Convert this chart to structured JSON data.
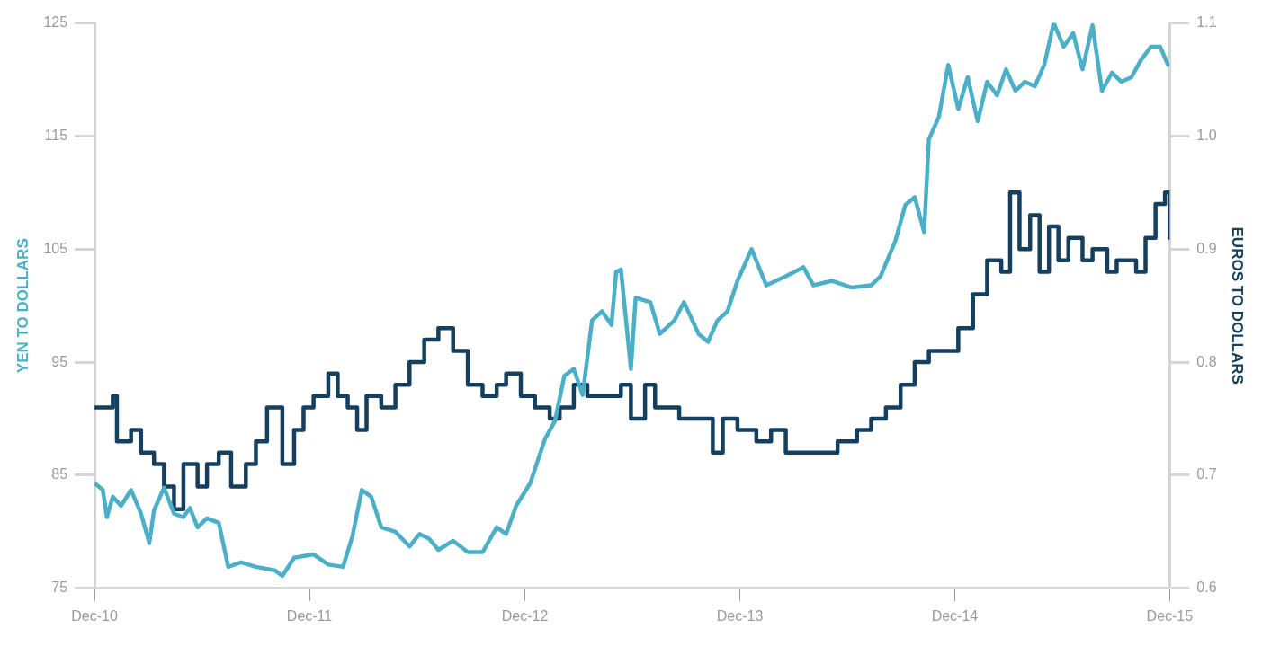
{
  "chart_data": {
    "type": "line",
    "ylabel": "YEN TO DOLLARS",
    "y2label": "EUROS TO DOLLARS",
    "xlim": [
      "2010-12",
      "2015-12"
    ],
    "xticks": [
      {
        "value": "2010-12",
        "label": "Dec-10"
      },
      {
        "value": "2011-12",
        "label": "Dec-11"
      },
      {
        "value": "2012-12",
        "label": "Dec-12"
      },
      {
        "value": "2013-12",
        "label": "Dec-13"
      },
      {
        "value": "2014-12",
        "label": "Dec-14"
      },
      {
        "value": "2015-12",
        "label": "Dec-15"
      }
    ],
    "ylim": [
      75,
      125
    ],
    "yticks": [
      75,
      85,
      95,
      105,
      115,
      125
    ],
    "y2lim": [
      0.6,
      1.1
    ],
    "y2ticks": [
      {
        "value": 0.6,
        "label": "0.6"
      },
      {
        "value": 0.7,
        "label": "0.7"
      },
      {
        "value": 0.8,
        "label": "0.8"
      },
      {
        "value": 0.9,
        "label": "0.9"
      },
      {
        "value": 1.0,
        "label": "1.0"
      },
      {
        "value": 1.1,
        "label": "1.1"
      }
    ],
    "grid": false,
    "legend": false,
    "marker": "none",
    "line_style": "solid",
    "series": [
      {
        "type": "line",
        "color": "#4bafc8",
        "x": [
          "2010-12-01",
          "2010-12-15",
          "2010-12-22",
          "2011-01-01",
          "2011-01-15",
          "2011-02-01",
          "2011-02-18",
          "2011-03-04",
          "2011-03-12",
          "2011-03-29",
          "2011-04-15",
          "2011-05-01",
          "2011-05-12",
          "2011-05-25",
          "2011-06-10",
          "2011-06-30",
          "2011-07-16",
          "2011-08-07",
          "2011-09-01",
          "2011-10-03",
          "2011-10-16",
          "2011-11-05",
          "2011-12-08",
          "2012-01-02",
          "2012-01-27",
          "2012-02-12",
          "2012-02-28",
          "2012-03-15",
          "2012-04-01",
          "2012-04-25",
          "2012-05-19",
          "2012-06-05",
          "2012-06-21",
          "2012-07-07",
          "2012-08-01",
          "2012-08-26",
          "2012-09-20",
          "2012-10-14",
          "2012-10-30",
          "2012-11-16",
          "2012-12-10",
          "2013-01-04",
          "2013-01-21",
          "2013-02-06",
          "2013-02-22",
          "2013-03-09",
          "2013-03-25",
          "2013-04-11",
          "2013-04-27",
          "2013-05-05",
          "2013-05-13",
          "2013-05-30",
          "2013-06-07",
          "2013-07-02",
          "2013-07-18",
          "2013-08-12",
          "2013-08-28",
          "2013-09-22",
          "2013-10-08",
          "2013-10-24",
          "2013-11-10",
          "2013-11-27",
          "2013-12-21",
          "2014-01-15",
          "2014-02-17",
          "2014-03-19",
          "2014-04-05",
          "2014-05-07",
          "2014-06-09",
          "2014-07-12",
          "2014-07-28",
          "2014-08-22",
          "2014-09-08",
          "2014-09-24",
          "2014-10-10",
          "2014-10-18",
          "2014-11-04",
          "2014-11-20",
          "2014-12-07",
          "2014-12-23",
          "2015-01-09",
          "2015-01-25",
          "2015-02-11",
          "2015-02-26",
          "2015-03-14",
          "2015-03-30",
          "2015-04-16",
          "2015-05-02",
          "2015-05-18",
          "2015-06-04",
          "2015-06-20",
          "2015-07-06",
          "2015-07-23",
          "2015-08-08",
          "2015-08-25",
          "2015-09-10",
          "2015-09-27",
          "2015-10-13",
          "2015-10-30",
          "2015-11-15",
          "2015-11-28"
        ],
        "values": [
          84.3,
          83.7,
          81.3,
          83.1,
          82.3,
          83.7,
          81.6,
          79.0,
          81.9,
          83.9,
          81.6,
          81.3,
          82.1,
          80.4,
          81.2,
          80.8,
          76.9,
          77.3,
          76.9,
          76.6,
          76.1,
          77.7,
          78.0,
          77.1,
          76.9,
          79.6,
          83.7,
          83.1,
          80.4,
          80.0,
          78.7,
          79.8,
          79.4,
          78.4,
          79.2,
          78.2,
          78.2,
          80.4,
          79.8,
          82.3,
          84.3,
          88.2,
          89.8,
          93.8,
          94.4,
          92.1,
          98.7,
          99.5,
          98.3,
          103.0,
          103.2,
          94.4,
          100.7,
          100.3,
          97.5,
          98.7,
          100.3,
          97.5,
          96.8,
          98.7,
          99.5,
          102.2,
          105.0,
          101.8,
          102.6,
          103.4,
          101.8,
          102.2,
          101.6,
          101.8,
          102.6,
          105.7,
          108.9,
          109.6,
          106.5,
          114.7,
          116.7,
          121.3,
          117.4,
          120.2,
          116.3,
          119.8,
          118.6,
          120.9,
          119.0,
          119.8,
          119.4,
          121.3,
          125.0,
          122.9,
          124.1,
          120.9,
          124.8,
          119.0,
          120.6,
          119.8,
          120.2,
          121.7,
          122.9,
          122.9,
          121.3
        ]
      },
      {
        "type": "step",
        "axis": "y2",
        "color": "#143f5e",
        "x": [
          "2010-12-01",
          "2010-12-22",
          "2011-01-01",
          "2011-01-08",
          "2011-02-01",
          "2011-02-18",
          "2011-03-12",
          "2011-03-29",
          "2011-04-15",
          "2011-05-01",
          "2011-05-25",
          "2011-06-10",
          "2011-06-30",
          "2011-07-21",
          "2011-08-15",
          "2011-09-01",
          "2011-09-20",
          "2011-10-16",
          "2011-11-05",
          "2011-11-21",
          "2011-12-08",
          "2012-01-02",
          "2012-01-18",
          "2012-02-04",
          "2012-02-20",
          "2012-03-07",
          "2012-04-01",
          "2012-04-25",
          "2012-05-19",
          "2012-06-13",
          "2012-07-07",
          "2012-08-01",
          "2012-08-26",
          "2012-09-20",
          "2012-10-14",
          "2012-10-30",
          "2012-11-24",
          "2012-12-18",
          "2013-01-12",
          "2013-01-29",
          "2013-02-22",
          "2013-03-17",
          "2013-04-11",
          "2013-05-13",
          "2013-05-30",
          "2013-06-23",
          "2013-07-10",
          "2013-08-20",
          "2013-09-22",
          "2013-10-16",
          "2013-11-02",
          "2013-11-27",
          "2013-12-29",
          "2014-01-23",
          "2014-02-17",
          "2014-03-19",
          "2014-04-21",
          "2014-05-16",
          "2014-06-18",
          "2014-07-12",
          "2014-08-06",
          "2014-08-31",
          "2014-09-24",
          "2014-10-18",
          "2014-11-12",
          "2014-12-07",
          "2015-01-01",
          "2015-01-25",
          "2015-02-18",
          "2015-03-05",
          "2015-03-21",
          "2015-04-08",
          "2015-04-24",
          "2015-05-10",
          "2015-05-26",
          "2015-06-12",
          "2015-07-06",
          "2015-07-23",
          "2015-08-17",
          "2015-09-02",
          "2015-09-19",
          "2015-10-05",
          "2015-10-21",
          "2015-11-07",
          "2015-11-23",
          "2015-12-01"
        ],
        "values": [
          0.76,
          0.76,
          0.77,
          0.73,
          0.74,
          0.72,
          0.71,
          0.69,
          0.67,
          0.71,
          0.69,
          0.71,
          0.72,
          0.69,
          0.71,
          0.73,
          0.76,
          0.71,
          0.74,
          0.76,
          0.77,
          0.79,
          0.77,
          0.76,
          0.74,
          0.77,
          0.76,
          0.78,
          0.8,
          0.82,
          0.83,
          0.81,
          0.78,
          0.77,
          0.78,
          0.79,
          0.77,
          0.76,
          0.75,
          0.76,
          0.78,
          0.77,
          0.77,
          0.78,
          0.75,
          0.78,
          0.76,
          0.75,
          0.75,
          0.72,
          0.75,
          0.74,
          0.73,
          0.74,
          0.72,
          0.72,
          0.72,
          0.73,
          0.74,
          0.75,
          0.76,
          0.78,
          0.8,
          0.81,
          0.81,
          0.83,
          0.86,
          0.89,
          0.88,
          0.95,
          0.9,
          0.93,
          0.88,
          0.92,
          0.89,
          0.91,
          0.89,
          0.9,
          0.88,
          0.89,
          0.89,
          0.88,
          0.91,
          0.94,
          0.95,
          0.91
        ]
      }
    ]
  }
}
